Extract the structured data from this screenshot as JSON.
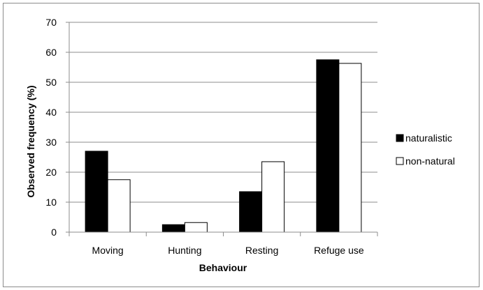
{
  "chart_data": {
    "type": "bar",
    "categories": [
      "Moving",
      "Hunting",
      "Resting",
      "Refuge use"
    ],
    "series": [
      {
        "name": "naturalistic",
        "values": [
          27,
          2.5,
          13.5,
          57.5
        ],
        "color": "#000000"
      },
      {
        "name": "non-natural",
        "values": [
          17.5,
          3.2,
          23.5,
          56.3
        ],
        "color": "#ffffff"
      }
    ],
    "xlabel": "Behaviour",
    "ylabel": "Observed frequency (%)",
    "ylim": [
      0,
      70
    ],
    "yticks": [
      0,
      10,
      20,
      30,
      40,
      50,
      60,
      70
    ],
    "grid": true,
    "legend_position": "right",
    "gridline_color": "#8c8c8c",
    "bar_outline_color": "#000000"
  }
}
